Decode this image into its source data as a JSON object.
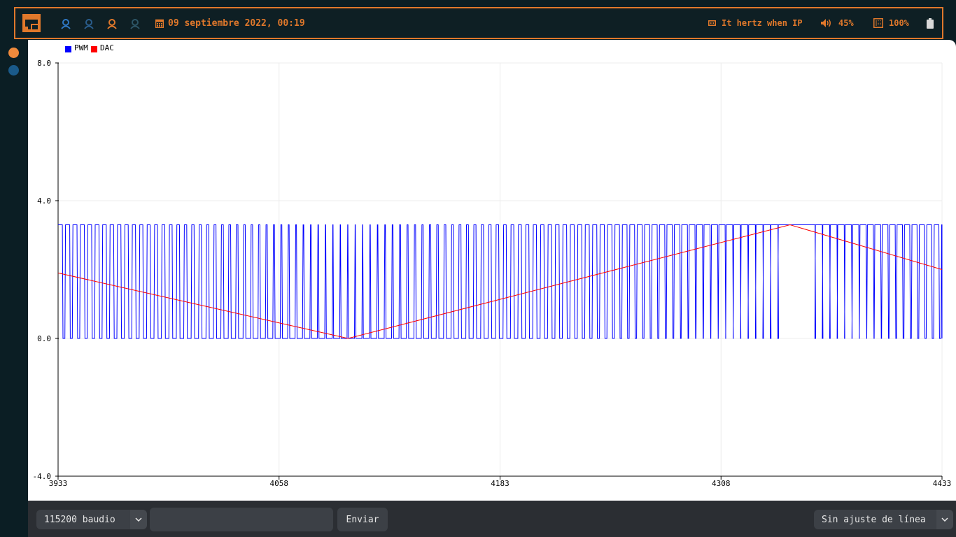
{
  "topbar": {
    "datetime": "09 septiembre 2022, 00:19",
    "network": "It hertz when IP",
    "volume": "45%",
    "brightness": "100%"
  },
  "colors": {
    "accent": "#e0782b",
    "pwm": "#0000ff",
    "dac": "#ff0000"
  },
  "toolbar": {
    "baud_label": "115200 baudio",
    "send_placeholder": "",
    "send_label": "Enviar",
    "line_ending_label": "Sin ajuste de línea"
  },
  "chart_data": {
    "type": "line",
    "legend": [
      "PWM",
      "DAC"
    ],
    "legend_position": "top-left",
    "grid": true,
    "xlim": [
      3933,
      4433
    ],
    "ylim": [
      -4.0,
      8.0
    ],
    "x_ticks": [
      "3933",
      "4058",
      "4183",
      "4308",
      "4433"
    ],
    "y_ticks": [
      "8.0",
      "4.0",
      "0.0",
      "-4.0"
    ],
    "series": [
      {
        "name": "DAC",
        "description_points": [
          [
            3933,
            1.9
          ],
          [
            4097,
            0.0
          ],
          [
            4347,
            3.3
          ],
          [
            4433,
            2.0
          ]
        ]
      },
      {
        "name": "PWM",
        "levels": [
          0.0,
          3.3
        ],
        "note_duty_cycle_follows": "DAC"
      }
    ]
  }
}
